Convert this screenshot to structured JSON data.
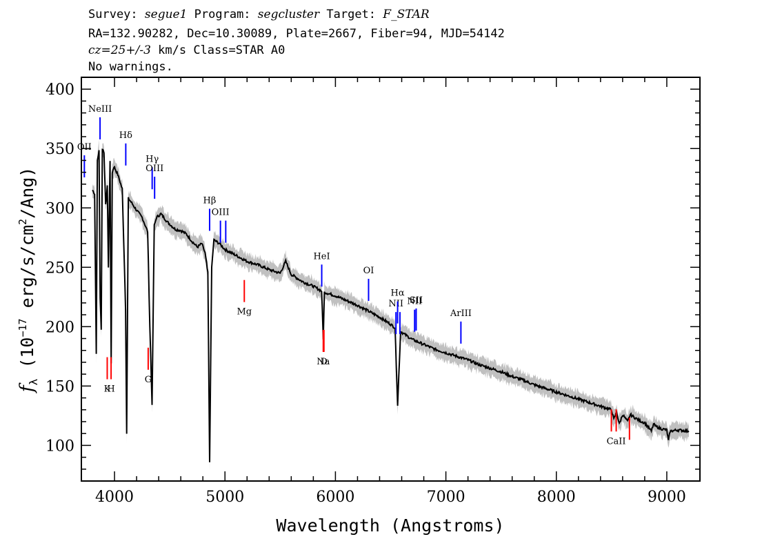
{
  "header": {
    "survey_label": "Survey:",
    "survey": "segue1",
    "program_label": "Program:",
    "program": "segcluster",
    "target_label": "Target:",
    "target": "F_STAR",
    "line2": "RA=132.90282, Dec=10.30089, Plate=2667, Fiber=94, MJD=54142",
    "cz": "cz=25+/-3",
    "cz_units": "km/s Class=STAR A0",
    "warnings": "No warnings."
  },
  "chart_data": {
    "type": "line",
    "title": "",
    "xlabel": "Wavelength (Angstroms)",
    "ylabel": "f_λ (10^-17 erg/s/cm^2/Ang)",
    "xlim": [
      3700,
      9300
    ],
    "ylim": [
      70,
      410
    ],
    "x_ticks": [
      4000,
      5000,
      6000,
      7000,
      8000,
      9000
    ],
    "y_ticks": [
      100,
      150,
      200,
      250,
      300,
      350,
      400
    ],
    "grid": false,
    "colors": {
      "flux": "#000000",
      "error_band": "#c0c0c0",
      "emission": "#0000ff",
      "absorption": "#ff0000"
    },
    "series": [
      {
        "x": [
          3800,
          3820,
          3835,
          3845,
          3860,
          3870,
          3880,
          3890,
          3905,
          3920,
          3935,
          3945,
          3960,
          3970,
          3980,
          3995,
          4010,
          4030,
          4050,
          4070,
          4090,
          4100,
          4110,
          4125,
          4150,
          4200,
          4250,
          4300,
          4320,
          4340,
          4360,
          4380,
          4420,
          4480,
          4550,
          4600,
          4650,
          4700,
          4750,
          4790,
          4820,
          4845,
          4861,
          4880,
          4900,
          4950,
          5000,
          5100,
          5200,
          5300,
          5400,
          5500,
          5550,
          5600,
          5700,
          5800,
          5875,
          5890,
          5900,
          6000,
          6100,
          6200,
          6300,
          6400,
          6500,
          6540,
          6563,
          6590,
          6650,
          6700,
          6800,
          6900,
          7000,
          7100,
          7200,
          7300,
          7400,
          7500,
          7600,
          7700,
          7800,
          7900,
          8000,
          8100,
          8200,
          8300,
          8400,
          8500,
          8520,
          8545,
          8570,
          8600,
          8645,
          8670,
          8700,
          8750,
          8800,
          8860,
          8880,
          8900,
          8950,
          9000,
          9015,
          9030,
          9100,
          9200
        ],
        "y": [
          315,
          312,
          178,
          340,
          348,
          225,
          198,
          350,
          347,
          302,
          318,
          250,
          340,
          168,
          330,
          335,
          332,
          328,
          322,
          316,
          250,
          215,
          110,
          308,
          305,
          298,
          292,
          280,
          200,
          135,
          285,
          292,
          295,
          288,
          282,
          281,
          278,
          272,
          267,
          270,
          262,
          245,
          86,
          250,
          273,
          270,
          265,
          260,
          255,
          252,
          248,
          245,
          255,
          244,
          238,
          234,
          230,
          190,
          229,
          226,
          222,
          218,
          213,
          208,
          202,
          199,
          134,
          196,
          192,
          189,
          185,
          181,
          178,
          175,
          172,
          168,
          165,
          162,
          158,
          155,
          151,
          148,
          145,
          142,
          139,
          136,
          133,
          130,
          122,
          128,
          118,
          126,
          120,
          126,
          124,
          121,
          119,
          112,
          118,
          116,
          114,
          113,
          104,
          112,
          113,
          112
        ]
      }
    ],
    "lines": [
      {
        "label": "OII",
        "wavelength": 3727,
        "kind": "emission",
        "flux": 335
      },
      {
        "label": "NeIII",
        "wavelength": 3869,
        "kind": "emission",
        "flux": 367
      },
      {
        "label": "Hδ",
        "wavelength": 4102,
        "kind": "emission",
        "flux": 345
      },
      {
        "label": "Hγ",
        "wavelength": 4341,
        "kind": "emission",
        "flux": 325
      },
      {
        "label": "OIII",
        "wavelength": 4363,
        "kind": "emission",
        "flux": 317
      },
      {
        "label": "Hβ",
        "wavelength": 4861,
        "kind": "emission",
        "flux": 290
      },
      {
        "label": "OIII",
        "wavelength": 4959,
        "kind": "emission",
        "flux": 280
      },
      {
        "label": "",
        "wavelength": 5007,
        "kind": "emission",
        "flux": 280
      },
      {
        "label": "HeI",
        "wavelength": 5876,
        "kind": "emission",
        "flux": 243
      },
      {
        "label": "OI",
        "wavelength": 6300,
        "kind": "emission",
        "flux": 231
      },
      {
        "label": "NII",
        "wavelength": 6548,
        "kind": "emission",
        "flux": 203
      },
      {
        "label": "Hα",
        "wavelength": 6563,
        "kind": "emission",
        "flux": 212
      },
      {
        "label": "",
        "wavelength": 6584,
        "kind": "emission",
        "flux": 203
      },
      {
        "label": "NII",
        "wavelength": 6717,
        "kind": "emission",
        "flux": 205
      },
      {
        "label": "SII",
        "wavelength": 6731,
        "kind": "emission",
        "flux": 206
      },
      {
        "label": "ArIII",
        "wavelength": 7136,
        "kind": "emission",
        "flux": 195
      },
      {
        "label": "K",
        "wavelength": 3934,
        "kind": "absorption",
        "flux": 165
      },
      {
        "label": "H",
        "wavelength": 3969,
        "kind": "absorption",
        "flux": 165
      },
      {
        "label": "G",
        "wavelength": 4305,
        "kind": "absorption",
        "flux": 173
      },
      {
        "label": "Mg",
        "wavelength": 5175,
        "kind": "absorption",
        "flux": 230
      },
      {
        "label": "Na",
        "wavelength": 5890,
        "kind": "absorption",
        "flux": 188
      },
      {
        "label": "D",
        "wavelength": 5896,
        "kind": "absorption",
        "flux": 188
      },
      {
        "label": "",
        "wavelength": 8498,
        "kind": "absorption",
        "flux": 121
      },
      {
        "label": "CaII",
        "wavelength": 8542,
        "kind": "absorption",
        "flux": 121
      },
      {
        "label": "",
        "wavelength": 8662,
        "kind": "absorption",
        "flux": 114
      }
    ]
  }
}
